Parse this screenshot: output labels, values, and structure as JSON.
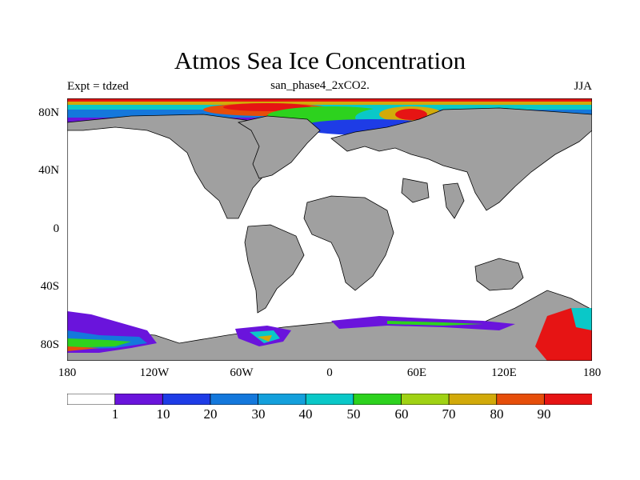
{
  "title": "Atmos Sea Ice Concentration",
  "subtitle": "san_phase4_2xCO2.",
  "left_string": "Expt = tdzed",
  "right_string": "JJA",
  "latitude_labels": [
    "80N",
    "40N",
    "0",
    "40S",
    "80S"
  ],
  "longitude_labels": [
    "180",
    "120W",
    "60W",
    "0",
    "60E",
    "120E",
    "180"
  ],
  "colorbar": {
    "labels": [
      "1",
      "10",
      "20",
      "30",
      "40",
      "50",
      "60",
      "70",
      "80",
      "90"
    ],
    "colors": [
      "#ffffff",
      "#6a14dc",
      "#1e3ce6",
      "#1478dc",
      "#14a0dc",
      "#0ac8c8",
      "#2dd21e",
      "#a0d214",
      "#d2aa0a",
      "#e64e0a",
      "#e61414"
    ]
  },
  "map": {
    "land_color": "#a0a0a0",
    "ocean_color": "#ffffff"
  }
}
